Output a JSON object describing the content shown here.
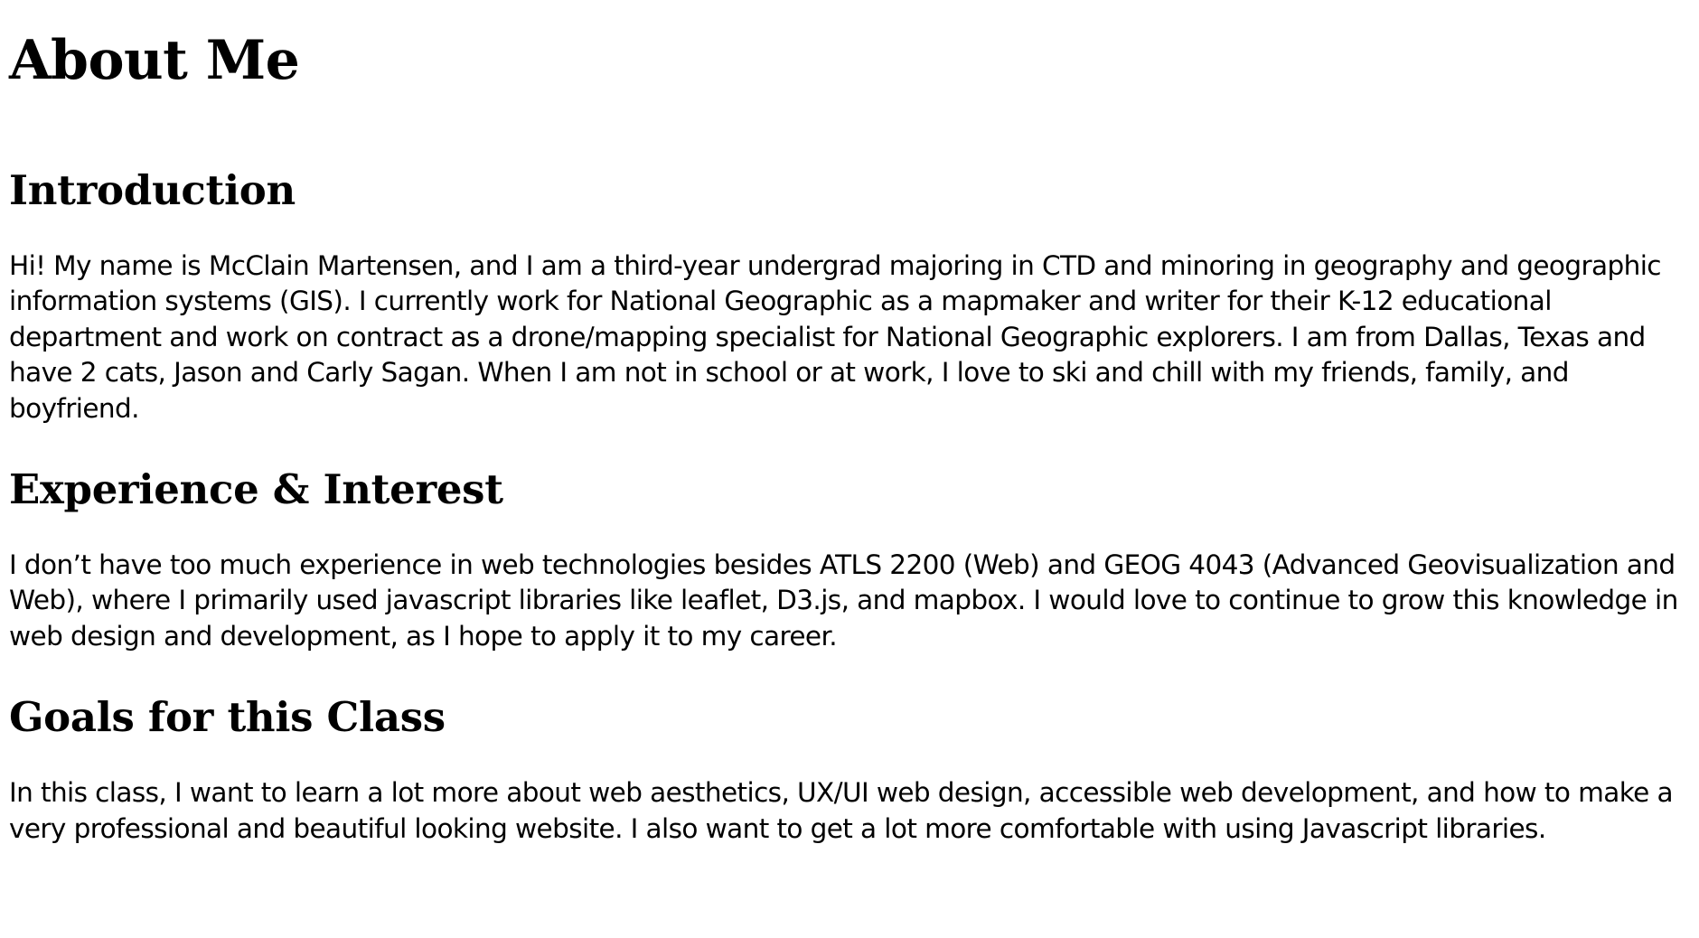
{
  "title": "About Me",
  "sections": [
    {
      "heading": "Introduction",
      "body": "Hi! My name is McClain Martensen, and I am a third-year undergrad majoring in CTD and minoring in geography and geographic information systems (GIS). I currently work for National Geographic as a mapmaker and writer for their K-12 educational department and work on contract as a drone/mapping specialist for National Geographic explorers. I am from Dallas, Texas and have 2 cats, Jason and Carly Sagan. When I am not in school or at work, I love to ski and chill with my friends, family, and boyfriend."
    },
    {
      "heading": "Experience & Interest",
      "body": "I don’t have too much experience in web technologies besides ATLS 2200 (Web) and GEOG 4043 (Advanced Geovisualization and Web), where I primarily used javascript libraries like leaflet, D3.js, and mapbox. I would love to continue to grow this knowledge in web design and development, as I hope to apply it to my career."
    },
    {
      "heading": "Goals for this Class",
      "body": "In this class, I want to learn a lot more about web aesthetics, UX/UI web design, accessible web development, and how to make a very professional and beautiful looking website. I also want to get a lot more comfortable with using Javascript libraries."
    }
  ]
}
